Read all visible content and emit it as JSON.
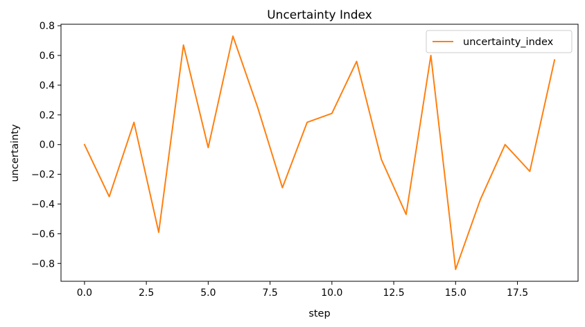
{
  "chart_data": {
    "type": "line",
    "title": "Uncertainty Index",
    "xlabel": "step",
    "ylabel": "uncertainty",
    "xlim": [
      -0.95,
      19.95
    ],
    "ylim": [
      -0.92,
      0.81
    ],
    "x_ticks": [
      0.0,
      2.5,
      5.0,
      7.5,
      10.0,
      12.5,
      15.0,
      17.5
    ],
    "x_tick_labels": [
      "0.0",
      "2.5",
      "5.0",
      "7.5",
      "10.0",
      "12.5",
      "15.0",
      "17.5"
    ],
    "y_ticks": [
      0.8,
      0.6,
      0.4,
      0.2,
      0.0,
      -0.2,
      -0.4,
      -0.6,
      -0.8
    ],
    "y_tick_labels": [
      "0.8",
      "0.6",
      "0.4",
      "0.2",
      "0.0",
      "−0.2",
      "−0.4",
      "−0.6",
      "−0.8"
    ],
    "grid": false,
    "legend": {
      "position": "upper right"
    },
    "series": [
      {
        "name": "uncertainty_index",
        "color": "#ff7f0e",
        "x": [
          0,
          1,
          2,
          3,
          4,
          5,
          6,
          7,
          8,
          9,
          10,
          11,
          12,
          13,
          14,
          15,
          16,
          17,
          18,
          19
        ],
        "y": [
          0.0,
          -0.35,
          0.15,
          -0.59,
          0.67,
          -0.02,
          0.73,
          0.25,
          -0.29,
          0.15,
          0.21,
          0.56,
          -0.1,
          -0.47,
          0.6,
          -0.84,
          -0.37,
          0.0,
          -0.18,
          0.57
        ]
      }
    ]
  }
}
